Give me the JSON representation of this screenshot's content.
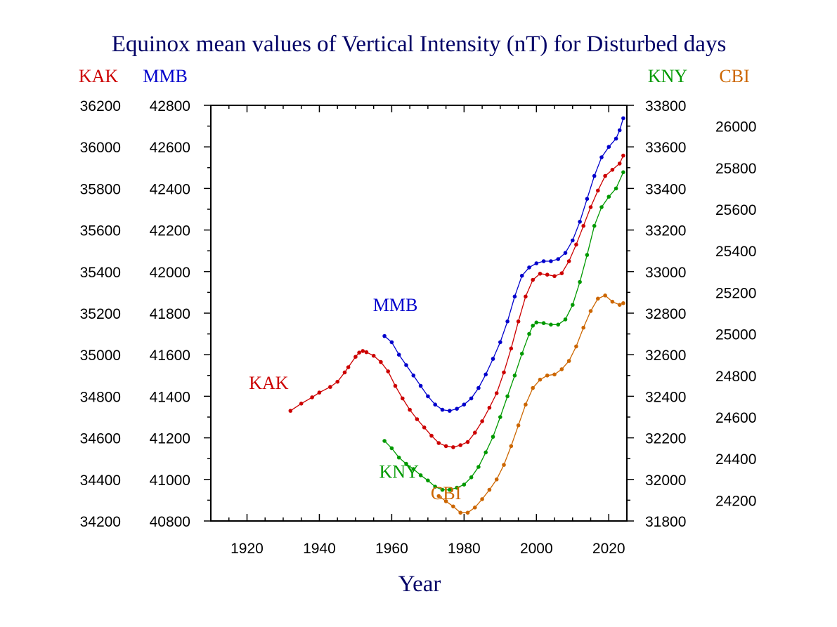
{
  "chart_data": {
    "type": "line",
    "title": "Equinox mean values of Vertical Intensity (nT) for Disturbed days",
    "xlabel": "Year",
    "xlim": [
      1910,
      2025
    ],
    "x_ticks": [
      "1920",
      "1940",
      "1960",
      "1980",
      "2000",
      "2020"
    ],
    "grid": false,
    "axes": [
      {
        "name": "KAK",
        "side": "left-outer",
        "color": "#cc0000",
        "ylim": [
          34200,
          36200
        ],
        "ticks": [
          "34200",
          "34400",
          "34600",
          "34800",
          "35000",
          "35200",
          "35400",
          "35600",
          "35800",
          "36000",
          "36200"
        ]
      },
      {
        "name": "MMB",
        "side": "left-inner",
        "color": "#0000cc",
        "ylim": [
          40800,
          42800
        ],
        "ticks": [
          "40800",
          "41000",
          "41200",
          "41400",
          "41600",
          "41800",
          "42000",
          "42200",
          "42400",
          "42600",
          "42800"
        ]
      },
      {
        "name": "KNY",
        "side": "right-inner",
        "color": "#009900",
        "ylim": [
          31800,
          33800
        ],
        "ticks": [
          "31800",
          "32000",
          "32200",
          "32400",
          "32600",
          "32800",
          "33000",
          "33200",
          "33400",
          "33600",
          "33800"
        ]
      },
      {
        "name": "CBI",
        "side": "right-outer",
        "color": "#cc6600",
        "ylim": [
          24100,
          26100
        ],
        "ticks": [
          "24200",
          "24400",
          "24600",
          "24800",
          "25000",
          "25200",
          "25400",
          "25600",
          "25800",
          "26000"
        ]
      }
    ],
    "series": [
      {
        "name": "KAK",
        "axis": 0,
        "color": "#cc0000",
        "label_at": [
          1926,
          34835
        ],
        "points": [
          [
            1932,
            34730
          ],
          [
            1935,
            34765
          ],
          [
            1938,
            34795
          ],
          [
            1940,
            34818
          ],
          [
            1943,
            34845
          ],
          [
            1945,
            34870
          ],
          [
            1947,
            34915
          ],
          [
            1948,
            34940
          ],
          [
            1950,
            34990
          ],
          [
            1951,
            35010
          ],
          [
            1952,
            35018
          ],
          [
            1953,
            35012
          ],
          [
            1955,
            34995
          ],
          [
            1957,
            34965
          ],
          [
            1959,
            34920
          ],
          [
            1961,
            34850
          ],
          [
            1963,
            34790
          ],
          [
            1965,
            34735
          ],
          [
            1967,
            34690
          ],
          [
            1969,
            34650
          ],
          [
            1971,
            34610
          ],
          [
            1973,
            34575
          ],
          [
            1975,
            34560
          ],
          [
            1977,
            34555
          ],
          [
            1979,
            34565
          ],
          [
            1981,
            34580
          ],
          [
            1983,
            34625
          ],
          [
            1985,
            34680
          ],
          [
            1987,
            34745
          ],
          [
            1989,
            34815
          ],
          [
            1991,
            34915
          ],
          [
            1993,
            35030
          ],
          [
            1995,
            35160
          ],
          [
            1997,
            35280
          ],
          [
            1999,
            35360
          ],
          [
            2001,
            35390
          ],
          [
            2003,
            35385
          ],
          [
            2005,
            35378
          ],
          [
            2007,
            35392
          ],
          [
            2009,
            35450
          ],
          [
            2011,
            35530
          ],
          [
            2013,
            35620
          ],
          [
            2015,
            35710
          ],
          [
            2017,
            35790
          ],
          [
            2019,
            35860
          ],
          [
            2021,
            35890
          ],
          [
            2023,
            35920
          ],
          [
            2024,
            35958
          ]
        ]
      },
      {
        "name": "MMB",
        "axis": 1,
        "color": "#0000cc",
        "label_at": [
          1961,
          41810
        ],
        "points": [
          [
            1958,
            41690
          ],
          [
            1960,
            41660
          ],
          [
            1962,
            41600
          ],
          [
            1964,
            41550
          ],
          [
            1966,
            41500
          ],
          [
            1968,
            41450
          ],
          [
            1970,
            41400
          ],
          [
            1972,
            41360
          ],
          [
            1974,
            41335
          ],
          [
            1976,
            41330
          ],
          [
            1978,
            41340
          ],
          [
            1980,
            41360
          ],
          [
            1982,
            41390
          ],
          [
            1984,
            41440
          ],
          [
            1986,
            41505
          ],
          [
            1988,
            41580
          ],
          [
            1990,
            41660
          ],
          [
            1992,
            41760
          ],
          [
            1994,
            41880
          ],
          [
            1996,
            41980
          ],
          [
            1998,
            42020
          ],
          [
            2000,
            42040
          ],
          [
            2002,
            42050
          ],
          [
            2004,
            42050
          ],
          [
            2006,
            42060
          ],
          [
            2008,
            42090
          ],
          [
            2010,
            42150
          ],
          [
            2012,
            42240
          ],
          [
            2014,
            42350
          ],
          [
            2016,
            42460
          ],
          [
            2018,
            42550
          ],
          [
            2020,
            42600
          ],
          [
            2022,
            42640
          ],
          [
            2023,
            42680
          ],
          [
            2024,
            42738
          ]
        ]
      },
      {
        "name": "KNY",
        "axis": 2,
        "color": "#009900",
        "label_at": [
          1962,
          32008
        ],
        "points": [
          [
            1958,
            32185
          ],
          [
            1960,
            32150
          ],
          [
            1962,
            32105
          ],
          [
            1964,
            32075
          ],
          [
            1966,
            32050
          ],
          [
            1968,
            32020
          ],
          [
            1970,
            31995
          ],
          [
            1972,
            31965
          ],
          [
            1974,
            31950
          ],
          [
            1976,
            31950
          ],
          [
            1978,
            31960
          ],
          [
            1980,
            31975
          ],
          [
            1982,
            32010
          ],
          [
            1984,
            32060
          ],
          [
            1986,
            32130
          ],
          [
            1988,
            32205
          ],
          [
            1990,
            32300
          ],
          [
            1992,
            32400
          ],
          [
            1994,
            32500
          ],
          [
            1996,
            32605
          ],
          [
            1998,
            32700
          ],
          [
            1999,
            32740
          ],
          [
            2000,
            32755
          ],
          [
            2002,
            32752
          ],
          [
            2004,
            32745
          ],
          [
            2006,
            32745
          ],
          [
            2008,
            32770
          ],
          [
            2010,
            32840
          ],
          [
            2012,
            32950
          ],
          [
            2014,
            33080
          ],
          [
            2016,
            33220
          ],
          [
            2018,
            33310
          ],
          [
            2020,
            33360
          ],
          [
            2022,
            33400
          ],
          [
            2024,
            33478
          ]
        ]
      },
      {
        "name": "CBI",
        "axis": 3,
        "color": "#cc6600",
        "label_at": [
          1975,
          24205
        ],
        "points": [
          [
            1973,
            24220
          ],
          [
            1975,
            24195
          ],
          [
            1977,
            24170
          ],
          [
            1979,
            24140
          ],
          [
            1981,
            24140
          ],
          [
            1983,
            24165
          ],
          [
            1985,
            24205
          ],
          [
            1987,
            24250
          ],
          [
            1989,
            24300
          ],
          [
            1991,
            24370
          ],
          [
            1993,
            24460
          ],
          [
            1995,
            24560
          ],
          [
            1997,
            24660
          ],
          [
            1999,
            24740
          ],
          [
            2001,
            24780
          ],
          [
            2003,
            24800
          ],
          [
            2005,
            24805
          ],
          [
            2007,
            24830
          ],
          [
            2009,
            24870
          ],
          [
            2011,
            24940
          ],
          [
            2013,
            25030
          ],
          [
            2015,
            25110
          ],
          [
            2017,
            25170
          ],
          [
            2019,
            25185
          ],
          [
            2021,
            25155
          ],
          [
            2023,
            25140
          ],
          [
            2024,
            25148
          ]
        ]
      }
    ]
  }
}
